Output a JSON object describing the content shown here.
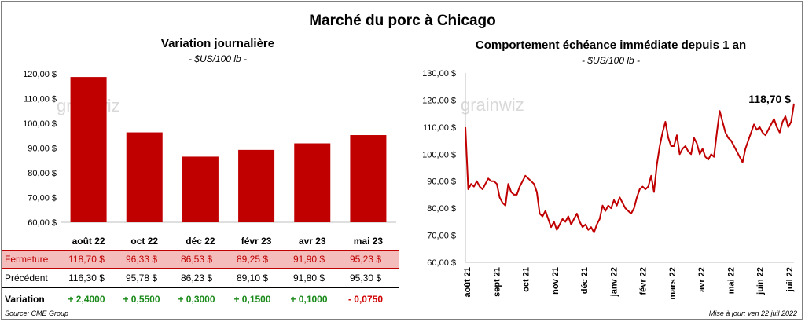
{
  "main_title": "Marché du porc à Chicago",
  "left_chart": {
    "title": "Variation journalière",
    "subtitle": "- $US/100 lb -"
  },
  "right_chart": {
    "title": "Comportement échéance immédiate depuis 1 an",
    "subtitle": "- $US/100 lb -",
    "last_label": "118,70 $"
  },
  "watermark": "grainwiz",
  "table": {
    "rows": [
      {
        "label": "Fermeture",
        "values": [
          "118,70  $",
          "96,33  $",
          "86,53  $",
          "89,25  $",
          "91,90  $",
          "95,23  $"
        ]
      },
      {
        "label": "Précédent",
        "values": [
          "116,30  $",
          "95,78  $",
          "86,23  $",
          "89,10  $",
          "91,80  $",
          "95,30  $"
        ]
      },
      {
        "label": "Variation",
        "values": [
          "+ 2,4000",
          "+ 0,5500",
          "+ 0,3000",
          "+ 0,1500",
          "+ 0,1000",
          "- 0,0750"
        ]
      }
    ]
  },
  "footer": {
    "source": "Source: CME Group",
    "updated": "Mise à jour: ven 22 juil 2022"
  },
  "colors": {
    "bar": "#c00000",
    "line": "#c00000",
    "positive": "#1a8a1a",
    "negative": "#d00000"
  },
  "chart_data": [
    {
      "type": "bar",
      "title": "Variation journalière",
      "subtitle": "- $US/100 lb -",
      "categories": [
        "août 22",
        "oct 22",
        "déc 22",
        "févr 23",
        "avr 23",
        "mai 23"
      ],
      "values": [
        118.7,
        96.33,
        86.53,
        89.25,
        91.9,
        95.23
      ],
      "ylim": [
        60,
        120
      ],
      "yticks": [
        60,
        70,
        80,
        90,
        100,
        110,
        120
      ],
      "ytick_labels": [
        "60,00 $",
        "70,00 $",
        "80,00 $",
        "90,00 $",
        "100,00 $",
        "110,00 $",
        "120,00 $"
      ],
      "grid": false
    },
    {
      "type": "line",
      "title": "Comportement échéance immédiate depuis 1 an",
      "subtitle": "- $US/100 lb -",
      "ylim": [
        60,
        130
      ],
      "yticks": [
        60,
        70,
        80,
        90,
        100,
        110,
        120,
        130
      ],
      "ytick_labels": [
        "60,00 $",
        "70,00 $",
        "80,00 $",
        "90,00 $",
        "100,00 $",
        "110,00 $",
        "120,00 $",
        "130,00 $"
      ],
      "xtick_labels": [
        "août 21",
        "sept 21",
        "oct 21",
        "nov 21",
        "déc 21",
        "janv 22",
        "févr 22",
        "mars 22",
        "avr 22",
        "mai 22",
        "juin 22",
        "juil 22"
      ],
      "annotation": "118,70 $",
      "grid": false,
      "series": [
        {
          "values": [
            110,
            87,
            89,
            88,
            90,
            88,
            87,
            89,
            91,
            90,
            90,
            89,
            84,
            82,
            81,
            89,
            86,
            85,
            85,
            88,
            90,
            92,
            91,
            90,
            89,
            86,
            78,
            77,
            79,
            76,
            73,
            75,
            72,
            74,
            76,
            75,
            77,
            74,
            76,
            78,
            75,
            73,
            74,
            72,
            73,
            71,
            74,
            76,
            81,
            79,
            81,
            80,
            83,
            81,
            84,
            82,
            80,
            79,
            78,
            80,
            84,
            87,
            88,
            87,
            88,
            92,
            86,
            96,
            103,
            108,
            112,
            106,
            103,
            103,
            107,
            100,
            102,
            103,
            101,
            100,
            106,
            104,
            100,
            102,
            99,
            98,
            100,
            99,
            108,
            116,
            112,
            108,
            106,
            105,
            103,
            101,
            99,
            97,
            102,
            105,
            108,
            111,
            109,
            110,
            108,
            107,
            109,
            111,
            113,
            110,
            108,
            112,
            114,
            110,
            112,
            118.7
          ]
        }
      ]
    }
  ]
}
